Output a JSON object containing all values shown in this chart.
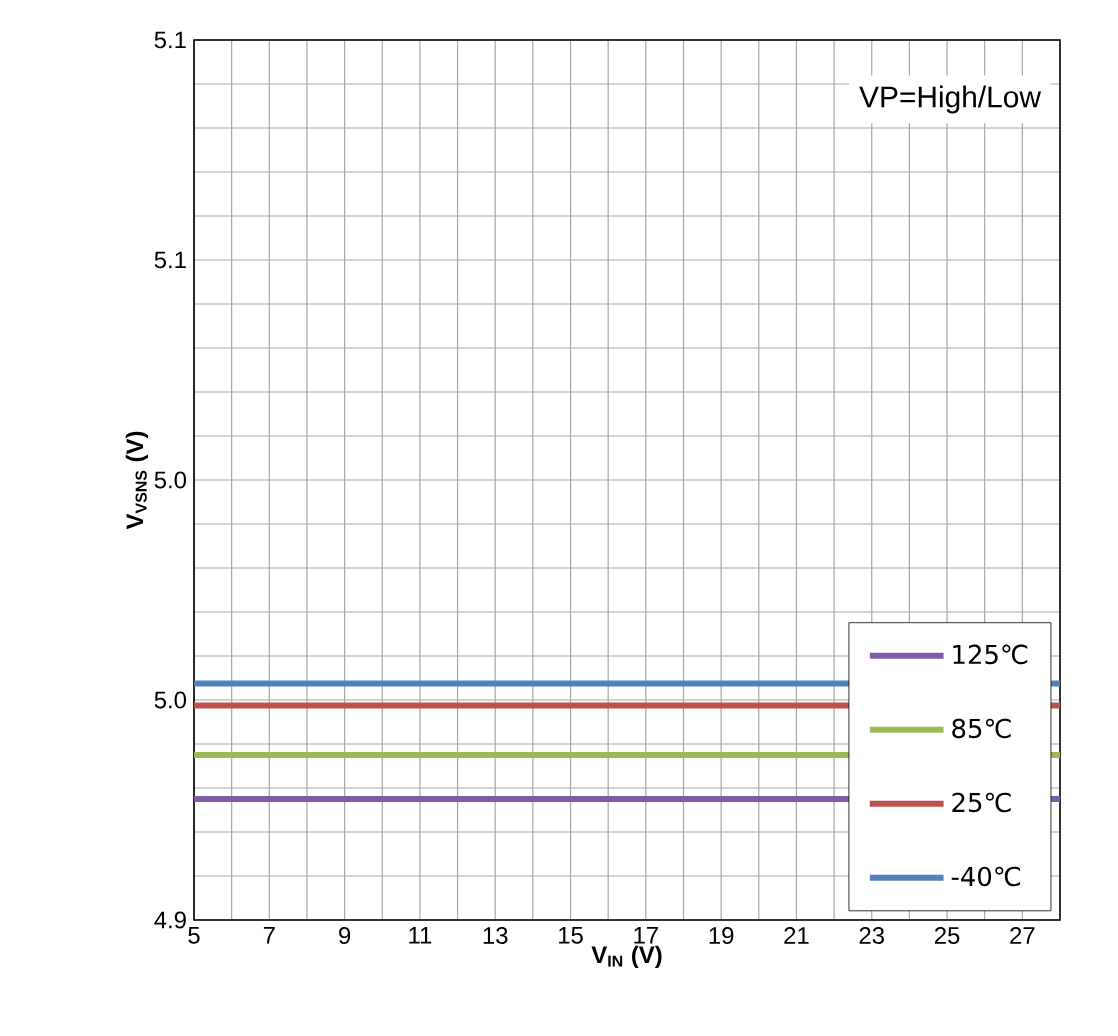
{
  "chart_data": {
    "type": "line",
    "xlabel": "V$_{IN}$ (V)",
    "ylabel": "V$_{VSNS}$ (V)",
    "x": [
      5,
      28
    ],
    "series": [
      {
        "name": "125℃",
        "color": "#7e5ca6",
        "values": [
          4.962,
          4.962
        ]
      },
      {
        "name": "85℃",
        "color": "#9bbb59",
        "values": [
          4.97,
          4.97
        ]
      },
      {
        "name": "25℃",
        "color": "#c0504d",
        "values": [
          4.979,
          4.979
        ]
      },
      {
        "name": "-40℃",
        "color": "#4f81bd",
        "values": [
          4.983,
          4.983
        ]
      }
    ],
    "xlim": [
      5,
      28
    ],
    "xticks": [
      5,
      7,
      9,
      11,
      13,
      15,
      17,
      19,
      21,
      23,
      25,
      27
    ],
    "ylim": [
      4.94,
      5.1
    ],
    "yticks": [
      {
        "value": 4.94,
        "label": "4.9"
      },
      {
        "value": 4.98,
        "label": "5.0"
      },
      {
        "value": 5.02,
        "label": "5.0"
      },
      {
        "value": 5.06,
        "label": "5.1"
      },
      {
        "value": 5.1,
        "label": "5.1"
      }
    ],
    "annotations": [
      "VP=High/Low"
    ],
    "grid": true,
    "legend": "bottom right",
    "marker": "none",
    "line_style": "solid"
  }
}
